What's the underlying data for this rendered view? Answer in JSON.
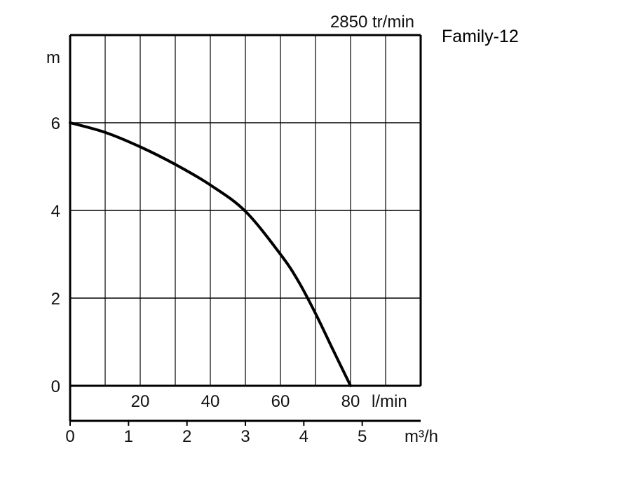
{
  "chart_data": {
    "type": "line",
    "title": "Family-12",
    "subtitle": "2850 tr/min",
    "ylabel": "m",
    "xlabel_primary": "l/min",
    "xlabel_secondary": "m³/h",
    "ylim": [
      0,
      8
    ],
    "xlim_lpm": [
      0,
      100
    ],
    "y_ticks": [
      "0",
      "2",
      "4",
      "6"
    ],
    "x_ticks_lpm": [
      "20",
      "40",
      "60",
      "80"
    ],
    "x_ticks_m3h": [
      "0",
      "1",
      "2",
      "3",
      "4",
      "5"
    ],
    "grid": true,
    "series": [
      {
        "x_lpm": [
          0,
          10,
          20,
          30,
          40,
          50,
          60,
          65,
          70,
          75,
          80
        ],
        "y_m": [
          6.0,
          5.78,
          5.45,
          5.05,
          4.58,
          3.98,
          3.0,
          2.4,
          1.65,
          0.82,
          0.0
        ]
      }
    ]
  }
}
